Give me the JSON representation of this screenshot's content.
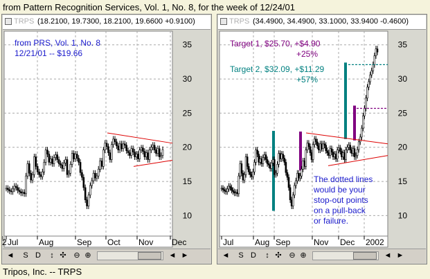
{
  "page": {
    "title": "from Pattern Recognition Services, Vol. 1, No. 8, for the week of 12/24/01",
    "footer": "Tripos, Inc. -- TRPS"
  },
  "colors": {
    "candle": "#000000",
    "triangle": "#dd0000",
    "target1": "#800080",
    "target2": "#008080",
    "label_blue": "#1a1acc",
    "grid": "#a8a8a8"
  },
  "left_panel": {
    "ticker": "TRPS",
    "ohlc": "(18.2100, 19.7300, 18.2100, 19.6600 +0.9100)",
    "annotation": [
      "from PRS, Vol. 1, No. 8",
      "12/21/01 -- $19.66"
    ],
    "toolbar": [
      "◄",
      "S",
      "D",
      "↕",
      "✣",
      "⊖",
      "⊕",
      "◄",
      "►"
    ]
  },
  "right_panel": {
    "ticker": "TRPS",
    "ohlc": "(34.4900, 34.4900, 33.1000, 33.9400 -0.4600)",
    "target1": [
      "Target 1, $25.70, +$4.90",
      "+25%"
    ],
    "target2": [
      "Target 2, $32.09, +$11.29",
      "+57%"
    ],
    "note": [
      "The dotted lines",
      "would be your",
      "stop-out points",
      "on a pull-back",
      "or failure."
    ],
    "toolbar": [
      "◄",
      "S",
      "D",
      "↕",
      "✣",
      "⊖",
      "⊕",
      "◄",
      "►"
    ]
  },
  "chart_data": [
    {
      "type": "candlestick",
      "title": "",
      "ylim": [
        7,
        37
      ],
      "yticks": [
        10,
        15,
        20,
        25,
        30,
        35
      ],
      "xtick_labels": [
        "Jul",
        "Aug",
        "Sep",
        "Oct",
        "Nov",
        "Dec",
        "2"
      ],
      "grid": true,
      "close": [
        14.0,
        13.8,
        13.6,
        13.5,
        13.9,
        14.3,
        14.1,
        13.7,
        13.5,
        13.3,
        13.4,
        13.2,
        15.8,
        17.6,
        16.2,
        15.2,
        16.0,
        18.6,
        17.2,
        16.4,
        16.0,
        15.7,
        16.4,
        17.8,
        19.6,
        19.0,
        17.8,
        18.3,
        17.6,
        18.5,
        18.9,
        18.2,
        17.6,
        17.4,
        16.9,
        17.7,
        18.2,
        16.0,
        16.2,
        17.5,
        19.1,
        18.3,
        19.0,
        18.4,
        17.8,
        16.3,
        15.6,
        14.1,
        12.3,
        11.4,
        13.0,
        14.4,
        15.1,
        16.2,
        15.5,
        15.8,
        16.8,
        18.0,
        17.2,
        19.6,
        20.6,
        20.1,
        19.2,
        18.2,
        20.4,
        21.2,
        20.8,
        20.2,
        19.6,
        20.5,
        19.8,
        20.5,
        20.3,
        19.5,
        19.2,
        18.8,
        19.8,
        19.3,
        18.6,
        19.0,
        18.3,
        19.6,
        19.9,
        19.4,
        18.6,
        19.2,
        18.2,
        19.6,
        20.0,
        20.3,
        19.6,
        19.1,
        19.8,
        18.6,
        18.8,
        19.66
      ]
    },
    {
      "type": "candlestick",
      "title": "",
      "ylim": [
        7,
        37
      ],
      "yticks": [
        10,
        15,
        20,
        25,
        30,
        35
      ],
      "xtick_labels": [
        "Jul",
        "Aug",
        "Sep",
        "Nov",
        "Dec",
        "2002"
      ],
      "grid": true,
      "close": [
        14.0,
        13.8,
        13.6,
        13.5,
        13.9,
        14.3,
        14.1,
        13.7,
        13.5,
        13.3,
        13.4,
        13.2,
        15.8,
        17.6,
        16.2,
        15.2,
        16.0,
        18.6,
        17.2,
        16.4,
        16.0,
        15.7,
        16.4,
        17.8,
        19.6,
        19.0,
        17.8,
        18.3,
        17.6,
        18.5,
        18.9,
        18.2,
        17.6,
        17.4,
        16.9,
        17.7,
        18.2,
        16.0,
        16.2,
        17.5,
        19.1,
        18.3,
        19.0,
        18.4,
        17.8,
        16.3,
        15.6,
        14.1,
        12.3,
        11.4,
        13.0,
        14.4,
        15.1,
        16.2,
        15.5,
        15.8,
        16.8,
        18.0,
        17.2,
        19.6,
        20.6,
        20.1,
        19.2,
        18.2,
        20.4,
        21.2,
        20.8,
        20.2,
        19.6,
        20.5,
        19.8,
        20.5,
        20.3,
        19.5,
        19.2,
        18.8,
        19.8,
        19.3,
        18.6,
        19.0,
        18.3,
        19.6,
        19.9,
        19.4,
        18.6,
        19.2,
        18.2,
        19.6,
        20.0,
        20.3,
        19.6,
        19.1,
        19.8,
        18.6,
        18.8,
        19.66,
        20.8,
        21.5,
        22.8,
        24.6,
        25.7,
        27.2,
        28.8,
        29.6,
        30.6,
        31.2,
        32.1,
        33.4,
        34.4,
        33.94
      ],
      "targets": [
        {
          "name": "Target 1",
          "price": 25.7,
          "gain": 4.9,
          "pct": 25
        },
        {
          "name": "Target 2",
          "price": 32.09,
          "gain": 11.29,
          "pct": 57
        }
      ]
    }
  ]
}
